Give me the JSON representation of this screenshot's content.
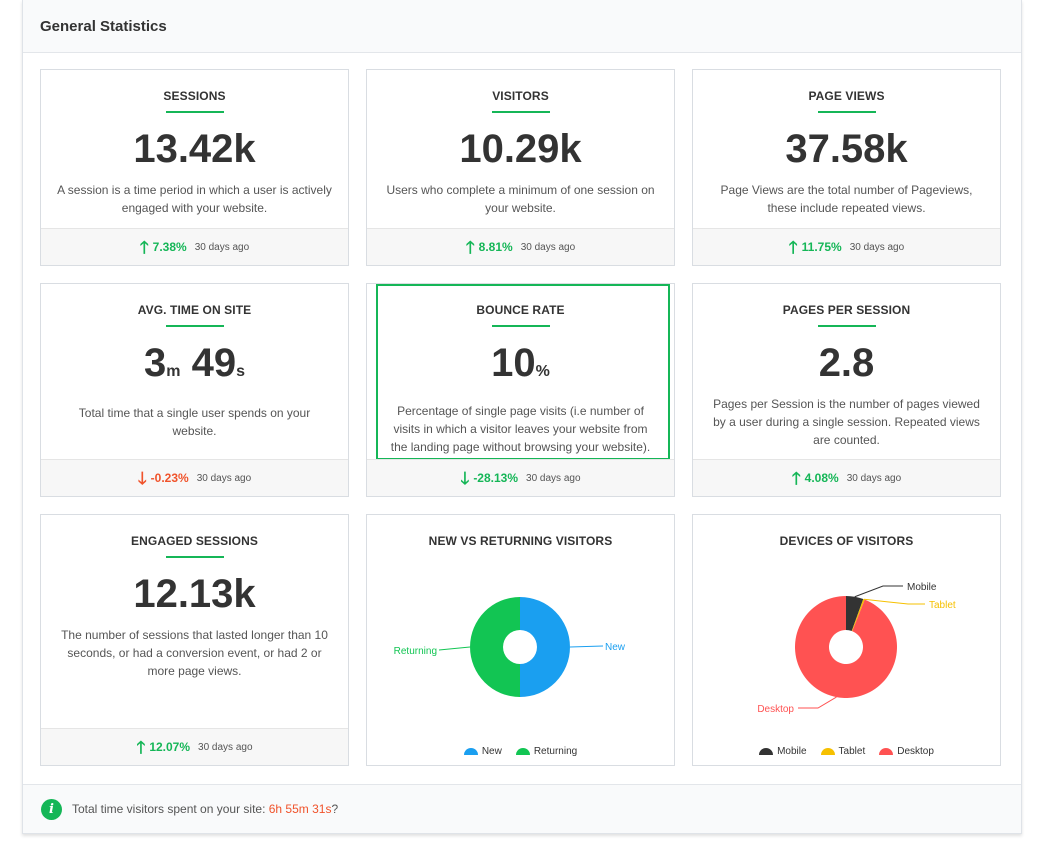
{
  "header": {
    "title": "General Statistics"
  },
  "cards": [
    {
      "title": "SESSIONS",
      "value": "13.42k",
      "desc": "A session is a time period in which a user is actively engaged with your website.",
      "trend": "7.38%",
      "direction": "up",
      "ago": "30 days ago"
    },
    {
      "title": "VISITORS",
      "value": "10.29k",
      "desc": "Users who complete a minimum of one session on your website.",
      "trend": "8.81%",
      "direction": "up",
      "ago": "30 days ago"
    },
    {
      "title": "PAGE VIEWS",
      "value": "37.58k",
      "desc": "Page Views are the total number of Pageviews, these include repeated views.",
      "trend": "11.75%",
      "direction": "up",
      "ago": "30 days ago"
    },
    {
      "title": "AVG. TIME ON SITE",
      "value_min": "3",
      "unit_min": "m",
      "value_sec": "49",
      "unit_sec": "s",
      "desc": "Total time that a single user spends on your website.",
      "trend": "-0.23%",
      "direction": "down",
      "ago": "30 days ago"
    },
    {
      "title": "BOUNCE RATE",
      "value": "10",
      "unit": "%",
      "desc": "Percentage of single page visits (i.e number of visits in which a visitor leaves your website from the landing page without browsing your website).",
      "trend": "-28.13%",
      "direction": "down",
      "ago": "30 days ago"
    },
    {
      "title": "PAGES PER SESSION",
      "value": "2.8",
      "desc": "Pages per Session is the number of pages viewed by a user during a single session. Repeated views are counted.",
      "trend": "4.08%",
      "direction": "up",
      "ago": "30 days ago"
    },
    {
      "title": "ENGAGED SESSIONS",
      "value": "12.13k",
      "desc": "The number of sessions that lasted longer than 10 seconds, or had a conversion event, or had 2 or more page views.",
      "trend": "12.07%",
      "direction": "up",
      "ago": "30 days ago"
    }
  ],
  "arrows": {
    "up": "🡑",
    "down": "🡓"
  },
  "chart_data": [
    {
      "type": "pie",
      "title": "NEW VS RETURNING VISITORS",
      "categories": [
        "New",
        "Returning"
      ],
      "values": [
        50,
        50
      ],
      "colors": [
        "#1a9ff0",
        "#12c553"
      ],
      "legend": "bottom"
    },
    {
      "type": "pie",
      "title": "DEVICES OF VISITORS",
      "categories": [
        "Mobile",
        "Tablet",
        "Desktop"
      ],
      "values": [
        5.5,
        0.5,
        94
      ],
      "colors": [
        "#333333",
        "#f6c000",
        "#ff5252"
      ],
      "legend": "bottom"
    }
  ],
  "footer": {
    "text": "Total time visitors spent on your site: ",
    "time": "6h 55m 31s",
    "suffix": "?",
    "icon": "info-icon"
  },
  "colors": {
    "accent": "#15b657",
    "up": "#15b657",
    "down": "#f0532b"
  }
}
